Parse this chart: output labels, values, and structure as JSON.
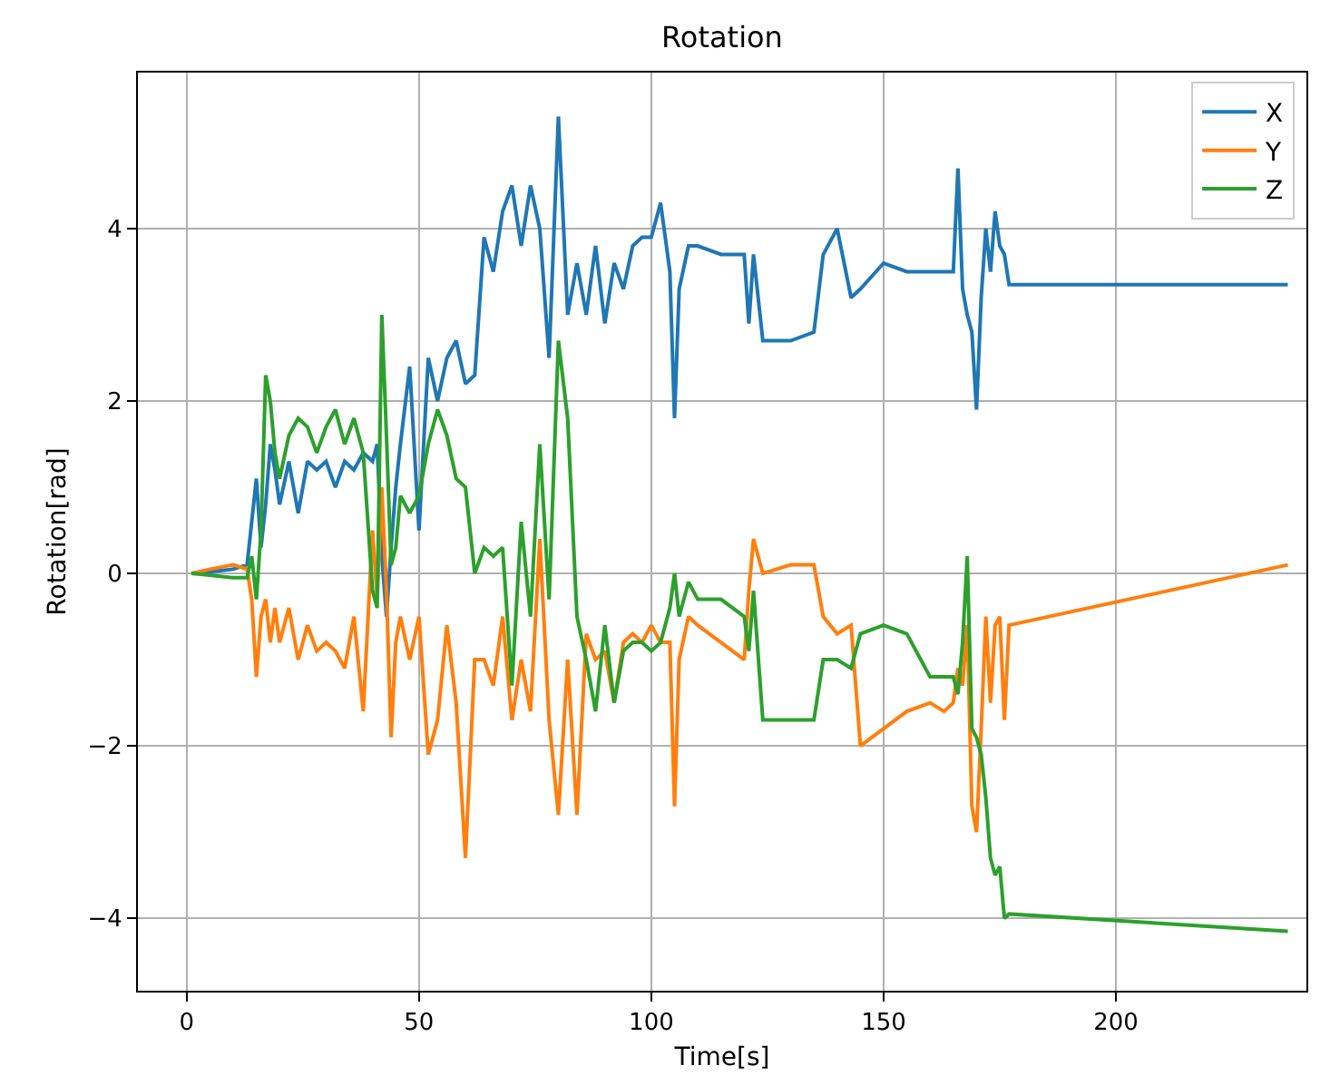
{
  "chart_data": {
    "type": "line",
    "title": "Rotation",
    "xlabel": "Time[s]",
    "ylabel": "Rotation[rad]",
    "x": [
      1,
      5,
      10,
      13,
      14,
      15,
      16,
      17,
      18,
      19,
      20,
      22,
      24,
      26,
      28,
      30,
      32,
      34,
      36,
      38,
      40,
      41,
      42,
      43,
      44,
      45,
      46,
      48,
      50,
      52,
      54,
      56,
      58,
      60,
      62,
      64,
      66,
      68,
      70,
      72,
      74,
      76,
      78,
      80,
      82,
      84,
      86,
      88,
      90,
      92,
      94,
      96,
      98,
      100,
      102,
      104,
      105,
      106,
      108,
      110,
      115,
      120,
      121,
      122,
      124,
      130,
      135,
      137,
      140,
      143,
      145,
      150,
      155,
      160,
      163,
      165,
      166,
      167,
      168,
      169,
      170,
      171,
      172,
      173,
      174,
      175,
      176,
      177,
      237
    ],
    "series": [
      {
        "name": "X",
        "color": "#1f77b4",
        "values": [
          0,
          0.02,
          0.05,
          0.1,
          0.6,
          1.1,
          0.3,
          0.8,
          1.5,
          1.2,
          0.8,
          1.3,
          0.7,
          1.3,
          1.2,
          1.3,
          1.0,
          1.3,
          1.2,
          1.4,
          1.3,
          1.5,
          0.2,
          -0.5,
          0.3,
          1.0,
          1.5,
          2.4,
          0.5,
          2.5,
          2.0,
          2.5,
          2.7,
          2.2,
          2.3,
          3.9,
          3.5,
          4.2,
          4.5,
          3.8,
          4.5,
          4.0,
          2.5,
          5.3,
          3.0,
          3.6,
          3.0,
          3.8,
          2.9,
          3.6,
          3.3,
          3.8,
          3.9,
          3.9,
          4.3,
          3.5,
          1.8,
          3.3,
          3.8,
          3.8,
          3.7,
          3.7,
          2.9,
          3.7,
          2.7,
          2.7,
          2.8,
          3.7,
          4.0,
          3.2,
          3.3,
          3.6,
          3.5,
          3.5,
          3.5,
          3.5,
          4.7,
          3.3,
          3.0,
          2.8,
          1.9,
          3.2,
          4.0,
          3.5,
          4.2,
          3.8,
          3.7,
          3.35,
          3.35
        ]
      },
      {
        "name": "Y",
        "color": "#ff7f0e",
        "values": [
          0,
          0.05,
          0.1,
          0.05,
          -0.3,
          -1.2,
          -0.5,
          -0.3,
          -0.8,
          -0.4,
          -0.8,
          -0.4,
          -1.0,
          -0.6,
          -0.9,
          -0.8,
          -0.9,
          -1.1,
          -0.5,
          -1.6,
          0.5,
          -0.3,
          1.0,
          -0.2,
          -1.9,
          -0.8,
          -0.5,
          -1.0,
          -0.5,
          -2.1,
          -1.7,
          -0.6,
          -1.5,
          -3.3,
          -1.0,
          -1.0,
          -1.3,
          -0.5,
          -1.7,
          -1.0,
          -1.6,
          0.4,
          -1.7,
          -2.8,
          -1.0,
          -2.8,
          -0.7,
          -1.0,
          -0.9,
          -1.5,
          -0.8,
          -0.7,
          -0.8,
          -0.6,
          -0.8,
          -0.8,
          -2.7,
          -1.0,
          -0.5,
          -0.6,
          -0.8,
          -1.0,
          -0.2,
          0.4,
          0.0,
          0.1,
          0.1,
          -0.5,
          -0.7,
          -0.6,
          -2.0,
          -1.8,
          -1.6,
          -1.5,
          -1.6,
          -1.5,
          -1.1,
          -1.3,
          -0.6,
          -2.7,
          -3.0,
          -1.8,
          -0.5,
          -1.5,
          -0.6,
          -0.5,
          -1.7,
          -0.6,
          0.1
        ]
      },
      {
        "name": "Z",
        "color": "#2ca02c",
        "values": [
          0,
          -0.02,
          -0.05,
          -0.05,
          0.2,
          -0.3,
          0.5,
          2.3,
          2.0,
          1.4,
          1.1,
          1.6,
          1.8,
          1.7,
          1.4,
          1.7,
          1.9,
          1.5,
          1.8,
          1.4,
          -0.2,
          -0.4,
          3.0,
          1.6,
          0.1,
          0.3,
          0.9,
          0.7,
          0.9,
          1.5,
          1.9,
          1.6,
          1.1,
          1.0,
          0.0,
          0.3,
          0.2,
          0.3,
          -1.3,
          0.6,
          -0.5,
          1.5,
          -0.3,
          2.7,
          1.8,
          -0.5,
          -1.0,
          -1.6,
          -0.6,
          -1.5,
          -0.9,
          -0.8,
          -0.8,
          -0.9,
          -0.8,
          -0.4,
          0.0,
          -0.5,
          -0.1,
          -0.3,
          -0.3,
          -0.5,
          -0.9,
          -0.2,
          -1.7,
          -1.7,
          -1.7,
          -1.0,
          -1.0,
          -1.1,
          -0.7,
          -0.6,
          -0.7,
          -1.2,
          -1.2,
          -1.2,
          -1.4,
          -0.8,
          0.2,
          -1.8,
          -1.9,
          -2.1,
          -2.6,
          -3.3,
          -3.5,
          -3.4,
          -4.0,
          -3.95,
          -4.15
        ]
      }
    ],
    "xlim": [
      -10.5,
      241
    ],
    "xticks": [
      0,
      50,
      100,
      150,
      200
    ],
    "ylim": [
      -4.84,
      5.81
    ],
    "yticks": [
      {
        "value": -4,
        "label": "−4"
      },
      {
        "value": -2,
        "label": "−2"
      },
      0,
      2,
      4
    ],
    "grid": true,
    "legend": "top right",
    "line_style": "solid",
    "marker": "none"
  }
}
